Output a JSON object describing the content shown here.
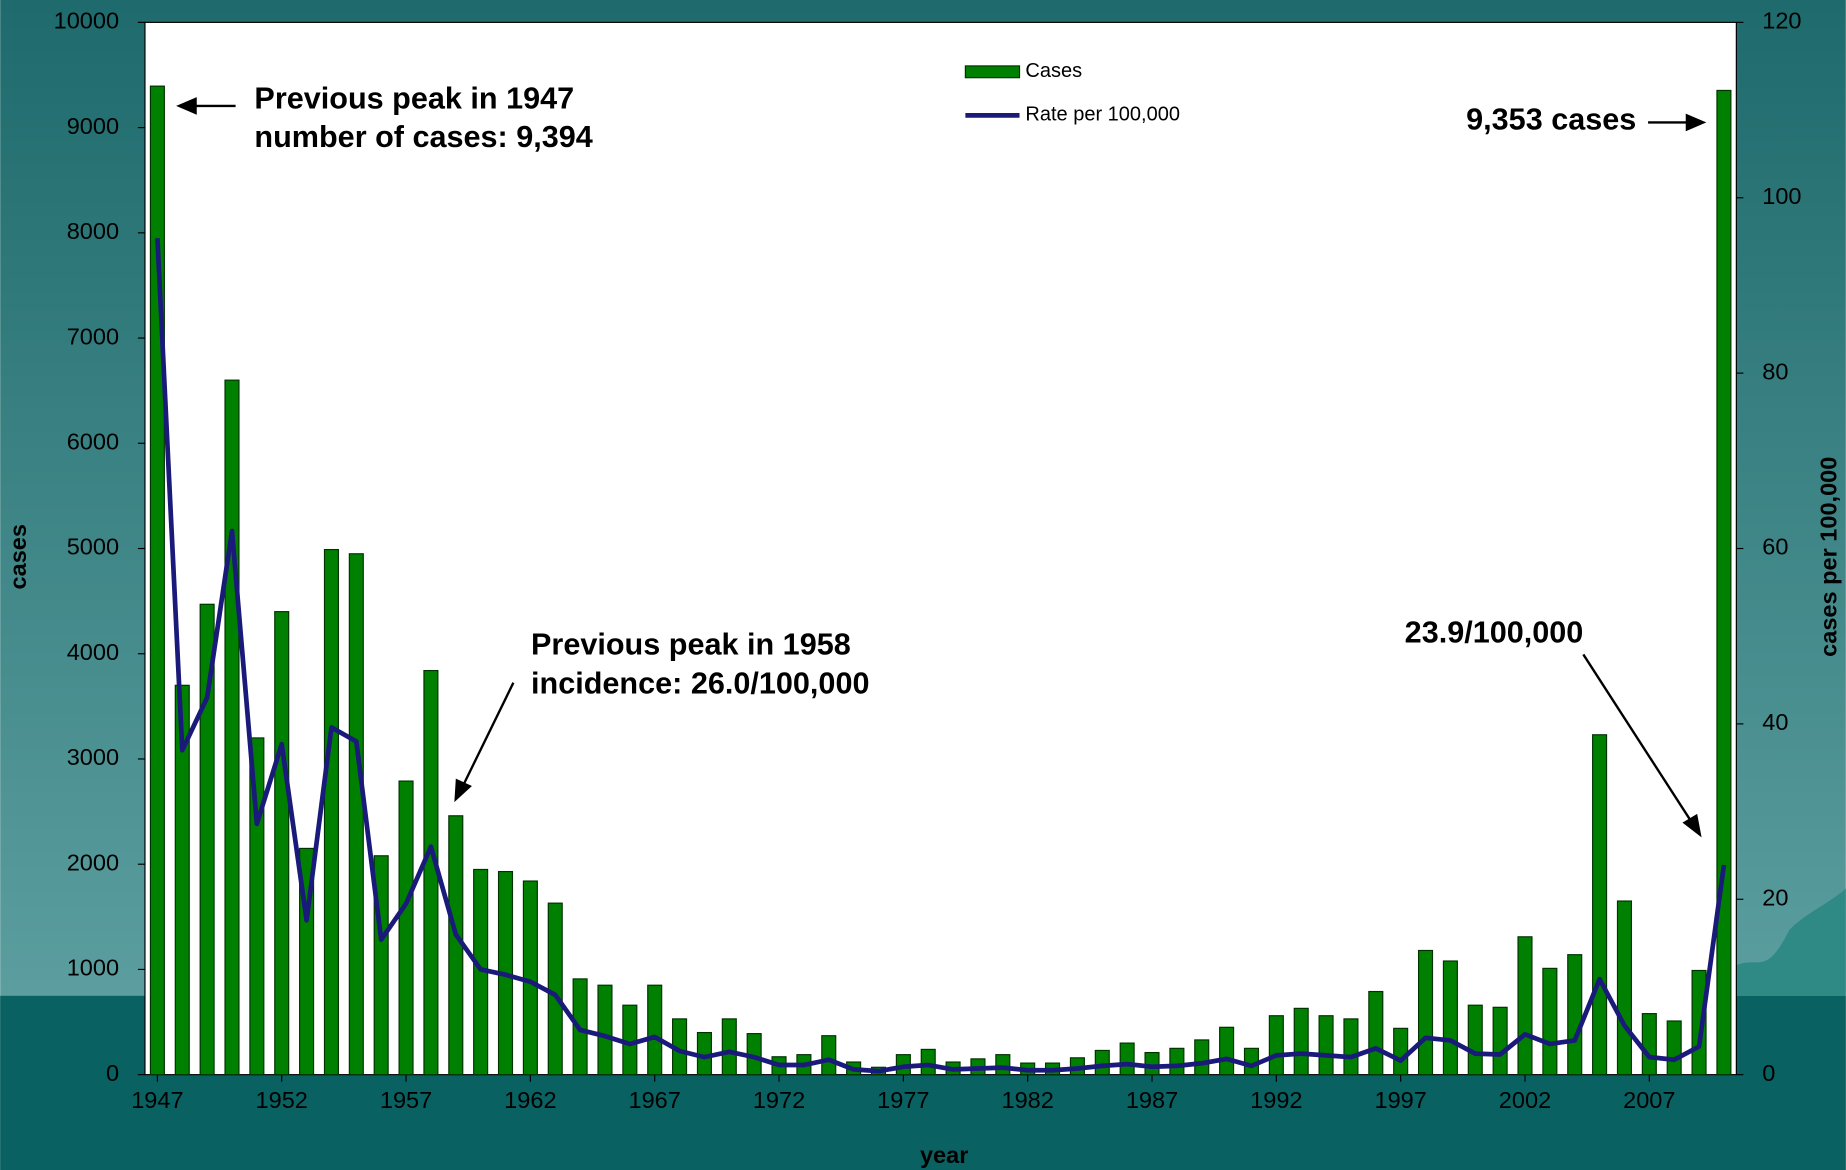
{
  "chart_data": {
    "type": "bar",
    "xlabel": "year",
    "ylabel": "cases",
    "y2label": "cases per 100,000",
    "legend": "top",
    "x": [
      1947,
      1948,
      1949,
      1950,
      1951,
      1952,
      1953,
      1954,
      1955,
      1956,
      1957,
      1958,
      1959,
      1960,
      1961,
      1962,
      1963,
      1964,
      1965,
      1966,
      1967,
      1968,
      1969,
      1970,
      1971,
      1972,
      1973,
      1974,
      1975,
      1976,
      1977,
      1978,
      1979,
      1980,
      1981,
      1982,
      1983,
      1984,
      1985,
      1986,
      1987,
      1988,
      1989,
      1990,
      1991,
      1992,
      1993,
      1994,
      1995,
      1996,
      1997,
      1998,
      1999,
      2000,
      2001,
      2002,
      2003,
      2004,
      2005,
      2006,
      2007,
      2008,
      2009,
      2010
    ],
    "xlim": [
      1946.5,
      2010.5
    ],
    "xticks": [
      1947,
      1952,
      1957,
      1962,
      1967,
      1972,
      1977,
      1982,
      1987,
      1992,
      1997,
      2002,
      2007
    ],
    "ylim": [
      0,
      10000
    ],
    "yticks": [
      0,
      1000,
      2000,
      3000,
      4000,
      5000,
      6000,
      7000,
      8000,
      9000,
      10000
    ],
    "y2lim": [
      0,
      120
    ],
    "y2ticks": [
      0,
      20,
      40,
      60,
      80,
      100,
      120
    ],
    "series": [
      {
        "name": "Cases",
        "type": "bar",
        "color": "#008000",
        "values": [
          9394,
          3700,
          4470,
          6600,
          3200,
          4400,
          2150,
          4990,
          4950,
          2080,
          2790,
          3840,
          2460,
          1950,
          1930,
          1840,
          1630,
          910,
          850,
          660,
          850,
          530,
          400,
          530,
          390,
          170,
          190,
          370,
          120,
          70,
          190,
          240,
          120,
          150,
          190,
          110,
          110,
          160,
          230,
          300,
          210,
          250,
          330,
          450,
          250,
          560,
          630,
          560,
          530,
          790,
          440,
          1180,
          1080,
          660,
          640,
          1310,
          1010,
          1140,
          3230,
          1650,
          580,
          510,
          990,
          9353
        ]
      },
      {
        "name": "Rate per 100,000",
        "type": "line",
        "axis": "y2",
        "color": "#1a1a7a",
        "values": [
          95.4,
          37,
          43,
          62,
          28.6,
          37.7,
          17.6,
          39.6,
          38,
          15.4,
          19.5,
          26.0,
          16,
          12,
          11.4,
          10.6,
          9.1,
          5.1,
          4.4,
          3.5,
          4.3,
          2.7,
          2,
          2.6,
          2,
          1.1,
          1.1,
          1.7,
          0.6,
          0.4,
          0.9,
          1.1,
          0.6,
          0.7,
          0.8,
          0.5,
          0.5,
          0.7,
          1.0,
          1.2,
          0.9,
          1.0,
          1.3,
          1.8,
          1.0,
          2.2,
          2.4,
          2.2,
          2.0,
          3.0,
          1.6,
          4.2,
          3.9,
          2.4,
          2.3,
          4.6,
          3.5,
          3.9,
          10.9,
          5.6,
          2.0,
          1.7,
          3.2,
          23.9
        ]
      }
    ],
    "annotations": [
      {
        "lines": [
          "Previous peak in 1947",
          "number of cases: 9,394"
        ]
      },
      {
        "lines": [
          "9,353 cases"
        ]
      },
      {
        "lines": [
          "Previous peak in 1958",
          "incidence: 26.0/100,000"
        ]
      },
      {
        "lines": [
          "23.9/100,000"
        ]
      }
    ]
  }
}
